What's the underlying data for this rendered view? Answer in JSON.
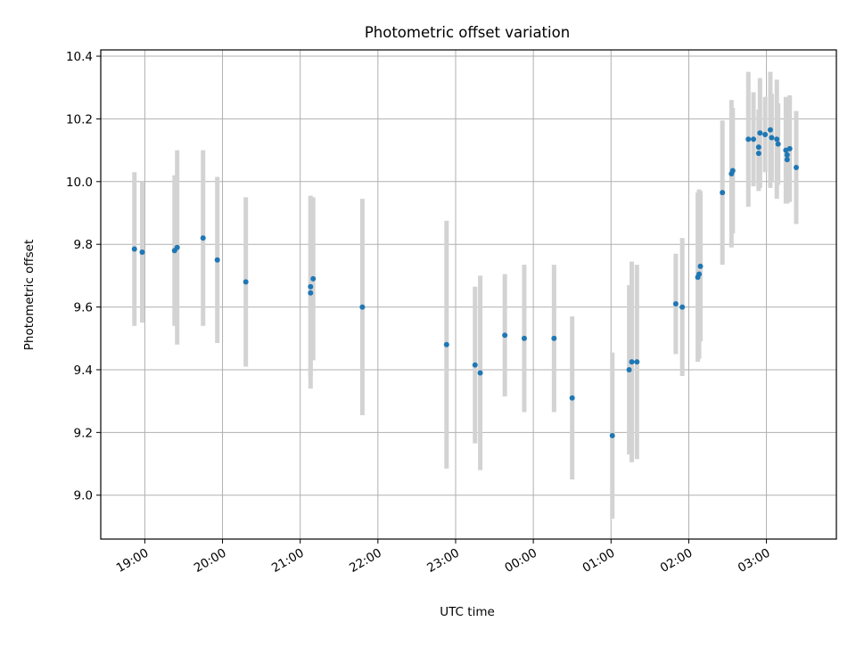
{
  "chart_data": {
    "type": "scatter",
    "title": "Photometric offset variation",
    "xlabel": "UTC time",
    "ylabel": "Photometric offset",
    "x_unit": "hours (UTC time of day)",
    "xlim": [
      "18:26",
      "03:54"
    ],
    "ylim": [
      8.86,
      10.42
    ],
    "grid": true,
    "x_ticks": [
      "19:00",
      "20:00",
      "21:00",
      "22:00",
      "23:00",
      "00:00",
      "01:00",
      "02:00",
      "03:00"
    ],
    "y_ticks": [
      "9.0",
      "9.2",
      "9.4",
      "9.6",
      "9.8",
      "10.0",
      "10.2",
      "10.4"
    ],
    "colors": {
      "points": "#1f77b4",
      "errorbars": "#d3d3d3",
      "grid": "#b0b0b0"
    },
    "series": [
      {
        "points": [
          {
            "x": "18:52",
            "y": 9.785,
            "err": 0.245
          },
          {
            "x": "18:58",
            "y": 9.775,
            "err": 0.225
          },
          {
            "x": "19:23",
            "y": 9.78,
            "err": 0.24
          },
          {
            "x": "19:25",
            "y": 9.79,
            "err": 0.31
          },
          {
            "x": "19:45",
            "y": 9.82,
            "err": 0.28
          },
          {
            "x": "19:56",
            "y": 9.75,
            "err": 0.265
          },
          {
            "x": "20:18",
            "y": 9.68,
            "err": 0.27
          },
          {
            "x": "21:08",
            "y": 9.645,
            "err": 0.305
          },
          {
            "x": "21:08",
            "y": 9.665,
            "err": 0.29
          },
          {
            "x": "21:10",
            "y": 9.69,
            "err": 0.26
          },
          {
            "x": "21:48",
            "y": 9.6,
            "err": 0.345
          },
          {
            "x": "22:53",
            "y": 9.48,
            "err": 0.395
          },
          {
            "x": "23:15",
            "y": 9.415,
            "err": 0.25
          },
          {
            "x": "23:19",
            "y": 9.39,
            "err": 0.31
          },
          {
            "x": "23:38",
            "y": 9.51,
            "err": 0.195
          },
          {
            "x": "23:53",
            "y": 9.5,
            "err": 0.235
          },
          {
            "x": "00:16",
            "y": 9.5,
            "err": 0.235
          },
          {
            "x": "00:30",
            "y": 9.31,
            "err": 0.26
          },
          {
            "x": "01:01",
            "y": 9.19,
            "err": 0.265
          },
          {
            "x": "01:14",
            "y": 9.4,
            "err": 0.27
          },
          {
            "x": "01:16",
            "y": 9.425,
            "err": 0.32
          },
          {
            "x": "01:20",
            "y": 9.425,
            "err": 0.31
          },
          {
            "x": "01:50",
            "y": 9.61,
            "err": 0.16
          },
          {
            "x": "01:55",
            "y": 9.6,
            "err": 0.22
          },
          {
            "x": "02:07",
            "y": 9.695,
            "err": 0.27
          },
          {
            "x": "02:08",
            "y": 9.705,
            "err": 0.27
          },
          {
            "x": "02:09",
            "y": 9.73,
            "err": 0.24
          },
          {
            "x": "02:26",
            "y": 9.965,
            "err": 0.23
          },
          {
            "x": "02:33",
            "y": 10.025,
            "err": 0.235
          },
          {
            "x": "02:34",
            "y": 10.035,
            "err": 0.2
          },
          {
            "x": "02:46",
            "y": 10.135,
            "err": 0.215
          },
          {
            "x": "02:50",
            "y": 10.135,
            "err": 0.15
          },
          {
            "x": "02:54",
            "y": 10.09,
            "err": 0.12
          },
          {
            "x": "02:54",
            "y": 10.11,
            "err": 0.12
          },
          {
            "x": "02:55",
            "y": 10.155,
            "err": 0.175
          },
          {
            "x": "02:59",
            "y": 10.15,
            "err": 0.12
          },
          {
            "x": "03:03",
            "y": 10.165,
            "err": 0.185
          },
          {
            "x": "03:04",
            "y": 10.14,
            "err": 0.14
          },
          {
            "x": "03:08",
            "y": 10.135,
            "err": 0.19
          },
          {
            "x": "03:09",
            "y": 10.12,
            "err": 0.13
          },
          {
            "x": "03:15",
            "y": 10.1,
            "err": 0.17
          },
          {
            "x": "03:16",
            "y": 10.085,
            "err": 0.15
          },
          {
            "x": "03:16",
            "y": 10.07,
            "err": 0.14
          },
          {
            "x": "03:18",
            "y": 10.105,
            "err": 0.17
          },
          {
            "x": "03:23",
            "y": 10.045,
            "err": 0.18
          }
        ]
      }
    ]
  }
}
